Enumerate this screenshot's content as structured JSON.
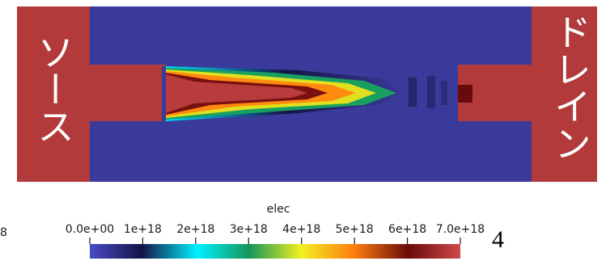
{
  "labels": {
    "source": "ソース",
    "drain": "ドレイン",
    "field_name": "elec",
    "left_edge_fragment": "8",
    "corner_number": "4"
  },
  "colorbar": {
    "ticks": [
      "0.0e+00",
      "1e+18",
      "2e+18",
      "3e+18",
      "4e+18",
      "5e+18",
      "6e+18",
      "7.0e+18"
    ],
    "range": [
      0,
      7e+18
    ],
    "colors": [
      "#4040c0",
      "#1a1a5a",
      "#00e8ff",
      "#1aa060",
      "#e0e020",
      "#ff8a10",
      "#701010",
      "#c84040"
    ]
  },
  "colors": {
    "source_drain": "#b23a3a",
    "channel": "#3a3a9a",
    "background": "#ffffff"
  }
}
